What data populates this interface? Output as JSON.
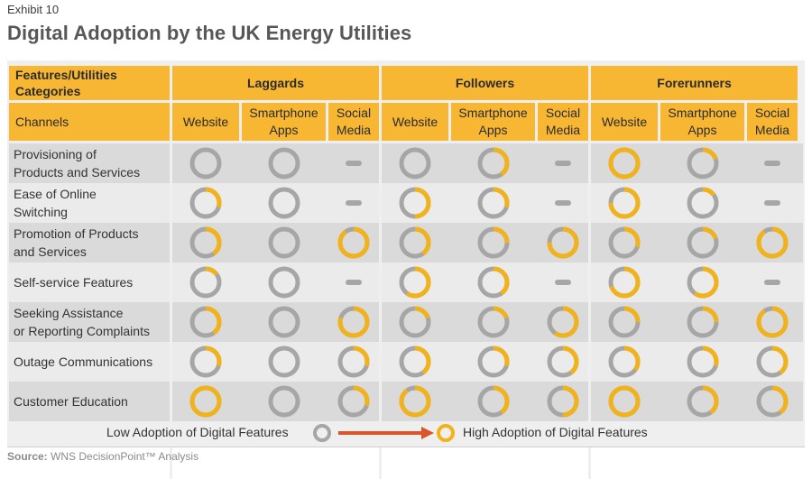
{
  "exhibit_label": "Exhibit 10",
  "title": "Digital Adoption by the UK Energy Utilities",
  "colors": {
    "accent": "#f7b733",
    "ring_gray": "#a6a6a6",
    "ring_yellow": "#f2b21a",
    "arrow": "#d8562a"
  },
  "table": {
    "corner_header": "Features/Utilities\nCategories",
    "row_label_header": "Channels",
    "groups": [
      {
        "name": "Laggards",
        "channels": [
          "Website",
          "Smartphone\nApps",
          "Social\nMedia"
        ]
      },
      {
        "name": "Followers",
        "channels": [
          "Website",
          "Smartphone\nApps",
          "Social\nMedia"
        ]
      },
      {
        "name": "Forerunners",
        "channels": [
          "Website",
          "Smartphone\nApps",
          "Social\nMedia"
        ]
      }
    ],
    "rows": [
      {
        "label": "Provisioning of\nProducts and Services",
        "values": [
          0,
          0,
          null,
          0,
          0.4,
          null,
          1,
          0.2,
          null
        ]
      },
      {
        "label": "Ease of Online\nSwitching",
        "values": [
          0.3,
          0,
          null,
          0.5,
          0.3,
          null,
          0.75,
          0.15,
          null
        ]
      },
      {
        "label": "Promotion of Products\nand Services",
        "values": [
          0.4,
          0,
          0.9,
          0.4,
          0.25,
          0.75,
          0.3,
          0.2,
          0.9
        ]
      },
      {
        "label": "Self-service Features",
        "values": [
          0.15,
          0,
          null,
          0.6,
          0.4,
          null,
          0.7,
          0.6,
          null
        ]
      },
      {
        "label": "Seeking Assistance\nor Reporting Complaints",
        "values": [
          0.4,
          0,
          0.8,
          0.2,
          0.2,
          0.6,
          0.25,
          0.25,
          0.9
        ]
      },
      {
        "label": "Outage Communications",
        "values": [
          0.3,
          0,
          0.3,
          0.4,
          0.3,
          0.4,
          0.35,
          0.3,
          0.4
        ]
      },
      {
        "label": "Customer Education",
        "values": [
          1,
          0,
          0.3,
          0.9,
          0.4,
          0.5,
          1,
          0.4,
          0.4
        ]
      }
    ]
  },
  "legend": {
    "low_label": "Low Adoption of Digital Features",
    "high_label": "High Adoption of Digital Features"
  },
  "source": {
    "prefix": "Source:",
    "text": " WNS DecisionPoint™ Analysis"
  }
}
